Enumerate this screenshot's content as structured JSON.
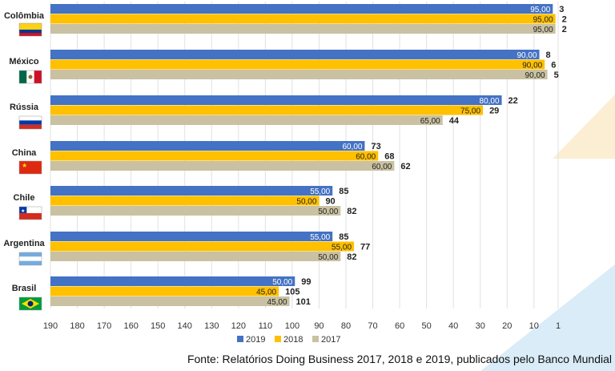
{
  "chart_data": {
    "type": "bar",
    "orientation": "horizontal",
    "x_axis": {
      "reversed": true,
      "tick_labels": [
        "190",
        "180",
        "170",
        "160",
        "150",
        "140",
        "130",
        "120",
        "110",
        "100",
        "90",
        "80",
        "70",
        "60",
        "50",
        "40",
        "30",
        "20",
        "10",
        "1"
      ]
    },
    "categories": [
      "Colômbia",
      "México",
      "Rússia",
      "China",
      "Chile",
      "Argentina",
      "Brasil"
    ],
    "series": [
      {
        "name": "2019",
        "color": "#4472c4",
        "scores": [
          "95,00",
          "90,00",
          "80,00",
          "60,00",
          "55,00",
          "55,00",
          "50,00"
        ],
        "ranks": [
          3,
          8,
          22,
          73,
          85,
          85,
          99
        ]
      },
      {
        "name": "2018",
        "color": "#ffc000",
        "scores": [
          "95,00",
          "90,00",
          "75,00",
          "60,00",
          "50,00",
          "55,00",
          "45,00"
        ],
        "ranks": [
          2,
          6,
          29,
          68,
          90,
          77,
          105
        ]
      },
      {
        "name": "2017",
        "color": "#c9c1a1",
        "scores": [
          "95,00",
          "90,00",
          "65,00",
          "60,00",
          "50,00",
          "50,00",
          "45,00"
        ],
        "ranks": [
          2,
          5,
          44,
          62,
          82,
          82,
          101
        ]
      }
    ],
    "legend": {
      "position": "bottom",
      "items": [
        "2019",
        "2018",
        "2017"
      ]
    }
  },
  "source": "Fonte: Relatórios Doing Business 2017, 2018 e 2019, publicados pelo Banco Mundial"
}
